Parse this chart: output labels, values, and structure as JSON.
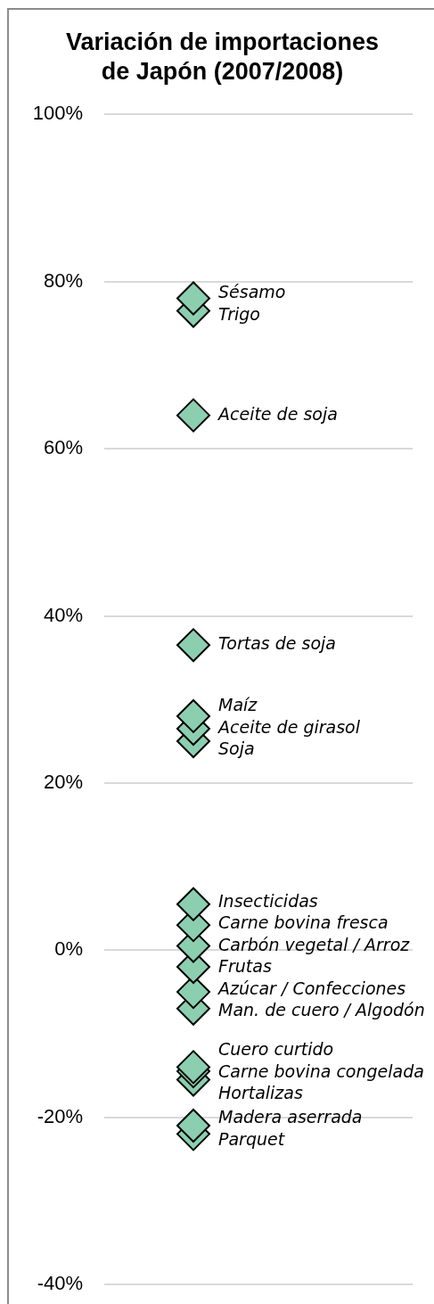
{
  "chart_data": {
    "type": "scatter",
    "title": "Variación de importaciones\nde Japón (2007/2008)",
    "categories": [
      null
    ],
    "series": [
      {
        "name": "Sésamo",
        "color": "#8ccfb0",
        "values": [
          78
        ]
      },
      {
        "name": "Trigo",
        "color": "#8ccfb0",
        "values": [
          76.5
        ]
      },
      {
        "name": "Aceite de soja",
        "color": "#8ccfb0",
        "values": [
          64
        ]
      },
      {
        "name": "Tortas de soja",
        "color": "#8ccfb0",
        "values": [
          36.5
        ]
      },
      {
        "name": "Maíz",
        "color": "#8ccfb0",
        "values": [
          28
        ]
      },
      {
        "name": "Aceite de girasol",
        "color": "#8ccfb0",
        "values": [
          26.5
        ]
      },
      {
        "name": "Soja",
        "color": "#8ccfb0",
        "values": [
          25
        ]
      },
      {
        "name": "Insecticidas",
        "color": "#8ccfb0",
        "values": [
          5.5
        ]
      },
      {
        "name": "Carne bovina fresca",
        "color": "#8ccfb0",
        "values": [
          3
        ]
      },
      {
        "name": "Carbón vegetal / Arroz",
        "color": "#8ccfb0",
        "values": [
          0.5
        ]
      },
      {
        "name": "Frutas",
        "color": "#8ccfb0",
        "values": [
          -2
        ]
      },
      {
        "name": "Azúcar / Confecciones",
        "color": "#8ccfb0",
        "values": [
          -5
        ]
      },
      {
        "name": "Man. de cuero / Algodón",
        "color": "#8ccfb0",
        "values": [
          -7
        ]
      },
      {
        "name": "Cuero curtido",
        "color": "#8ccfb0",
        "values": [
          -14
        ]
      },
      {
        "name": "Carne bovina congelada",
        "color": "#8ccfb0",
        "values": [
          -14.5
        ]
      },
      {
        "name": "Hortalizas",
        "color": "#8ccfb0",
        "values": [
          -15.5
        ]
      },
      {
        "name": "Madera aserrada",
        "color": "#8ccfb0",
        "values": [
          -21
        ]
      },
      {
        "name": "Parquet",
        "color": "#8ccfb0",
        "values": [
          -22
        ]
      }
    ],
    "ylim": [
      -40,
      100
    ],
    "yticks": [
      {
        "value": -40,
        "label": "-40%"
      },
      {
        "value": -20,
        "label": "-20%"
      },
      {
        "value": 0,
        "label": "0%"
      },
      {
        "value": 20,
        "label": "20%"
      },
      {
        "value": 40,
        "label": "40%"
      },
      {
        "value": 60,
        "label": "60%"
      },
      {
        "value": 80,
        "label": "80%"
      },
      {
        "value": 100,
        "label": "100%"
      }
    ],
    "grid": "y",
    "legend": false,
    "tick_labels": "y",
    "marker": "diamond"
  }
}
